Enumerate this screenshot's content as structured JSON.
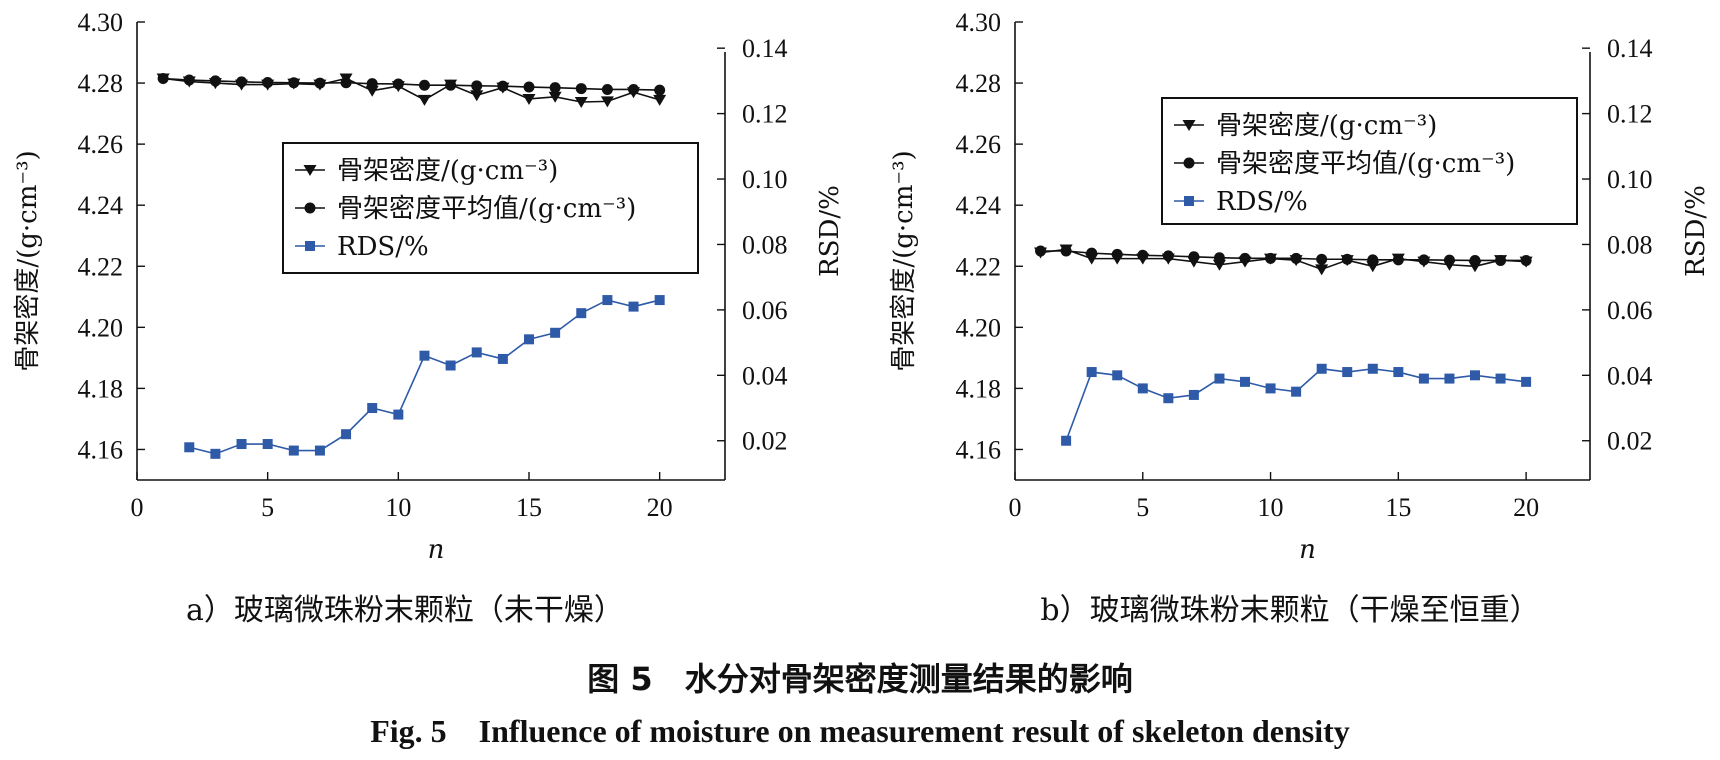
{
  "figure": {
    "title_cn": "图 5　水分对骨架密度测量结果的影响",
    "title_en": "Fig. 5　Influence of moisture on measurement result of skeleton density"
  },
  "colors": {
    "black": "#111111",
    "blue": "#2e5aa8"
  },
  "chart_data": [
    {
      "type": "line",
      "caption": "a）玻璃微珠粉末颗粒（未干燥）",
      "xlabel": "n",
      "ylabel_left": "骨架密度/(g·cm⁻³)",
      "ylabel_right": "RSD/%",
      "xlim": [
        0,
        22.5
      ],
      "xticks": [
        0,
        5,
        10,
        15,
        20
      ],
      "ylim_left": [
        4.15,
        4.3
      ],
      "yticks_left": [
        4.16,
        4.18,
        4.2,
        4.22,
        4.24,
        4.26,
        4.28,
        4.3
      ],
      "yticks_left_labels": [
        "4.16",
        "4.18",
        "4.20",
        "4.22",
        "4.24",
        "4.26",
        "4.28",
        "4.30"
      ],
      "ylim_right": [
        0.008,
        0.148
      ],
      "yticks_right": [
        0.02,
        0.04,
        0.06,
        0.08,
        0.1,
        0.12,
        0.14
      ],
      "yticks_right_labels": [
        "0.02",
        "0.04",
        "0.06",
        "0.08",
        "0.10",
        "0.12",
        "0.14"
      ],
      "legend": [
        "骨架密度/(g·cm⁻³)",
        "骨架密度平均值/(g·cm⁻³)",
        "RDS/%"
      ],
      "series": [
        {
          "name": "骨架密度/(g·cm⁻³)",
          "axis": "left",
          "marker": "triangle-down",
          "color": "#111111",
          "x": [
            1,
            2,
            3,
            4,
            5,
            6,
            7,
            8,
            9,
            10,
            11,
            12,
            13,
            14,
            15,
            16,
            17,
            18,
            19,
            20
          ],
          "values": [
            4.2815,
            4.2805,
            4.28,
            4.2795,
            4.2795,
            4.2798,
            4.2795,
            4.2815,
            4.2775,
            4.279,
            4.2745,
            4.2795,
            4.276,
            4.2785,
            4.2748,
            4.2755,
            4.2738,
            4.274,
            4.277,
            4.2745
          ]
        },
        {
          "name": "骨架密度平均值/(g·cm⁻³)",
          "axis": "left",
          "marker": "circle",
          "color": "#111111",
          "x": [
            1,
            2,
            3,
            4,
            5,
            6,
            7,
            8,
            9,
            10,
            11,
            12,
            13,
            14,
            15,
            16,
            17,
            18,
            19,
            20
          ],
          "values": [
            4.2815,
            4.281,
            4.2807,
            4.2804,
            4.2802,
            4.2801,
            4.28,
            4.2801,
            4.2798,
            4.2797,
            4.2793,
            4.2793,
            4.2791,
            4.279,
            4.2787,
            4.2785,
            4.2782,
            4.2779,
            4.2779,
            4.2777
          ]
        },
        {
          "name": "RDS/%",
          "axis": "right",
          "marker": "square",
          "color": "#2e5aa8",
          "x": [
            2,
            3,
            4,
            5,
            6,
            7,
            8,
            9,
            10,
            11,
            12,
            13,
            14,
            15,
            16,
            17,
            18,
            19,
            20
          ],
          "values": [
            0.018,
            0.016,
            0.019,
            0.019,
            0.017,
            0.017,
            0.022,
            0.03,
            0.028,
            0.046,
            0.043,
            0.047,
            0.045,
            0.051,
            0.053,
            0.059,
            0.063,
            0.061,
            0.063
          ]
        }
      ]
    },
    {
      "type": "line",
      "caption": "b）玻璃微珠粉末颗粒（干燥至恒重）",
      "xlabel": "n",
      "ylabel_left": "骨架密度/(g·cm⁻³)",
      "ylabel_right": "RSD/%",
      "xlim": [
        0,
        22.5
      ],
      "xticks": [
        0,
        5,
        10,
        15,
        20
      ],
      "ylim_left": [
        4.15,
        4.3
      ],
      "yticks_left": [
        4.16,
        4.18,
        4.2,
        4.22,
        4.24,
        4.26,
        4.28,
        4.3
      ],
      "yticks_left_labels": [
        "4.16",
        "4.18",
        "4.20",
        "4.22",
        "4.24",
        "4.26",
        "4.28",
        "4.30"
      ],
      "ylim_right": [
        0.008,
        0.148
      ],
      "yticks_right": [
        0.02,
        0.04,
        0.06,
        0.08,
        0.1,
        0.12,
        0.14
      ],
      "yticks_right_labels": [
        "0.02",
        "0.04",
        "0.06",
        "0.08",
        "0.10",
        "0.12",
        "0.14"
      ],
      "legend": [
        "骨架密度/(g·cm⁻³)",
        "骨架密度平均值/(g·cm⁻³)",
        "RDS/%"
      ],
      "series": [
        {
          "name": "骨架密度/(g·cm⁻³)",
          "axis": "left",
          "marker": "triangle-down",
          "color": "#111111",
          "x": [
            1,
            2,
            3,
            4,
            5,
            6,
            7,
            8,
            9,
            10,
            11,
            12,
            13,
            14,
            15,
            16,
            17,
            18,
            19,
            20
          ],
          "values": [
            4.2245,
            4.2255,
            4.2225,
            4.2225,
            4.2225,
            4.2225,
            4.2215,
            4.2205,
            4.2215,
            4.2225,
            4.222,
            4.219,
            4.222,
            4.22,
            4.2225,
            4.2215,
            4.2205,
            4.22,
            4.222,
            4.2215
          ]
        },
        {
          "name": "骨架密度平均值/(g·cm⁻³)",
          "axis": "left",
          "marker": "circle",
          "color": "#111111",
          "x": [
            1,
            2,
            3,
            4,
            5,
            6,
            7,
            8,
            9,
            10,
            11,
            12,
            13,
            14,
            15,
            16,
            17,
            18,
            19,
            20
          ],
          "values": [
            4.225,
            4.225,
            4.2243,
            4.2239,
            4.2236,
            4.2234,
            4.2231,
            4.2228,
            4.2226,
            4.2226,
            4.2226,
            4.2223,
            4.2223,
            4.2221,
            4.2221,
            4.2221,
            4.222,
            4.2219,
            4.2219,
            4.2219
          ]
        },
        {
          "name": "RDS/%",
          "axis": "right",
          "marker": "square",
          "color": "#2e5aa8",
          "x": [
            2,
            3,
            4,
            5,
            6,
            7,
            8,
            9,
            10,
            11,
            12,
            13,
            14,
            15,
            16,
            17,
            18,
            19,
            20
          ],
          "values": [
            0.02,
            0.041,
            0.04,
            0.036,
            0.033,
            0.034,
            0.039,
            0.038,
            0.036,
            0.035,
            0.042,
            0.041,
            0.042,
            0.041,
            0.039,
            0.039,
            0.04,
            0.039,
            0.038
          ]
        }
      ]
    }
  ]
}
